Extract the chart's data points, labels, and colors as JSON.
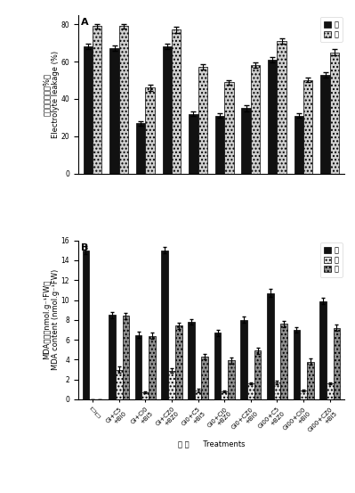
{
  "panel_A": {
    "title": "A",
    "ylabel_cn": "电解质溸漏率（%）",
    "ylabel_en": "Electrolyte leakage (%)",
    "ylim": [
      0,
      85
    ],
    "yticks": [
      0,
      20,
      40,
      60,
      80
    ],
    "legend_labels": [
      "根",
      "茎"
    ],
    "legend_colors": [
      "#111111",
      "#d0d0d0"
    ],
    "bar_width": 0.35,
    "root_values": [
      68,
      67,
      27,
      68,
      32,
      31,
      35,
      61,
      31,
      53
    ],
    "stem_values": [
      79,
      79,
      46,
      77,
      57,
      49,
      58,
      71,
      50,
      65
    ],
    "root_errors": [
      1.5,
      1.5,
      1.2,
      1.5,
      1.2,
      1.2,
      1.5,
      1.5,
      1.2,
      1.5
    ],
    "stem_errors": [
      1.2,
      1.2,
      1.5,
      1.5,
      1.5,
      1.2,
      1.5,
      1.5,
      1.2,
      1.5
    ]
  },
  "panel_B": {
    "title": "B",
    "ylabel_cn": "MDA含量（nmol.g⁻¹FW）",
    "ylabel_en": "MDA content (nmol.g⁻¹FW)",
    "ylim": [
      0,
      16
    ],
    "yticks": [
      0,
      2,
      4,
      6,
      8,
      10,
      12,
      14,
      16
    ],
    "legend_labels": [
      "根",
      "茎",
      "叶"
    ],
    "root_color": "#111111",
    "stem_color": "#e8e8e8",
    "leaf_color": "#909090",
    "bar_width": 0.26,
    "root_values": [
      15.0,
      8.5,
      6.5,
      15.0,
      7.8,
      6.7,
      8.0,
      10.7,
      7.0,
      9.9
    ],
    "stem_values": [
      0.0,
      3.0,
      0.7,
      2.9,
      0.9,
      0.8,
      1.6,
      1.7,
      0.9,
      1.6
    ],
    "leaf_values": [
      0.0,
      8.4,
      6.4,
      7.4,
      4.3,
      3.9,
      4.9,
      7.6,
      3.8,
      7.2
    ],
    "root_errors": [
      0.4,
      0.3,
      0.3,
      0.3,
      0.3,
      0.3,
      0.3,
      0.4,
      0.3,
      0.3
    ],
    "stem_errors": [
      0.0,
      0.3,
      0.1,
      0.2,
      0.2,
      0.1,
      0.1,
      0.2,
      0.1,
      0.1
    ],
    "leaf_errors": [
      0.0,
      0.3,
      0.3,
      0.3,
      0.3,
      0.3,
      0.3,
      0.3,
      0.3,
      0.3
    ]
  },
  "xlabel": "处 理      Treatments",
  "tick_fontsize": 5.5,
  "ylabel_fontsize": 6.0,
  "title_fontsize": 8,
  "legend_fontsize": 6.0,
  "background_color": "#ffffff",
  "x_tick_labels": [
    "对\n照",
    "Gi+C5\n+Bi0",
    "Gi+Ci0\n+Bi5",
    "Gi+CZ0\n+BZ0",
    "Gi0+C5\n+Bi5",
    "Gi0+Ci0\n+BZ0",
    "Gi0+CZ0\n+Bi0",
    "Gi00+C5\n+BZ0",
    "Gi00+Ci0\n+Bi0",
    "Gi00+CZ0\n+Bi5"
  ]
}
